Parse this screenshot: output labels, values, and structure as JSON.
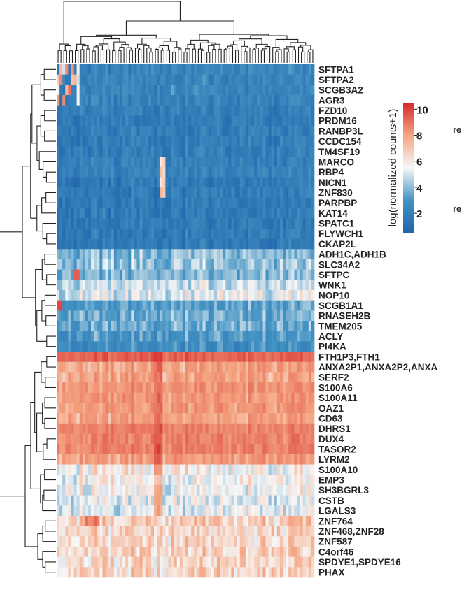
{
  "chart_data": {
    "type": "heatmap",
    "title": "",
    "xlabel": "",
    "ylabel": "",
    "row_labels": [
      "SFTPA1",
      "SFTPA2",
      "SCGB3A2",
      "AGR3",
      "FZD10",
      "PRDM16",
      "RANBP3L",
      "CCDC154",
      "TM4SF19",
      "MARCO",
      "RBP4",
      "NICN1",
      "ZNF830",
      "PARPBP",
      "KAT14",
      "SPATC1",
      "FLYWCH1",
      "CKAP2L",
      "ADH1C,ADH1B",
      "SLC34A2",
      "SFTPC",
      "WNK1",
      "NOP10",
      "SCGB1A1",
      "RNASEH2B",
      "TMEM205",
      "ACLY",
      "PI4KA",
      "FTH1P3,FTH1",
      "ANXA2P1,ANXA2P2,ANXA",
      "SERF2",
      "S100A6",
      "S100A11",
      "OAZ1",
      "CD63",
      "DHRS1",
      "DUX4",
      "TASOR2",
      "LYRM2",
      "S100A10",
      "EMP3",
      "SH3BGRL3",
      "CSTB",
      "LGALS3",
      "ZNF764",
      "ZNF468,ZNF28",
      "ZNF587",
      "C4orf46",
      "SPDYE1,SPDYE16",
      "PHAX"
    ],
    "column_count": 90,
    "row_mean_values": [
      2.2,
      2.2,
      2.3,
      2.1,
      1.9,
      1.8,
      1.8,
      1.8,
      1.9,
      2.0,
      2.0,
      1.7,
      1.7,
      1.7,
      1.7,
      1.7,
      1.7,
      1.7,
      3.7,
      3.9,
      3.6,
      4.4,
      4.6,
      3.2,
      3.4,
      3.4,
      3.0,
      2.6,
      8.6,
      6.6,
      6.6,
      7.0,
      6.9,
      6.9,
      6.7,
      7.6,
      7.6,
      7.6,
      6.8,
      5.0,
      4.9,
      4.8,
      4.6,
      4.6,
      5.7,
      5.6,
      5.5,
      5.6,
      5.5,
      5.6
    ],
    "colorbar": {
      "label": "log(normalized counts+1)",
      "ticks": [
        2,
        4,
        6,
        8,
        10
      ],
      "range": [
        0.5,
        10.5
      ],
      "low_color": "#2f71b1",
      "mid_color": "#f7f7f7",
      "high_color": "#d73027"
    },
    "clipped_labels": [
      "re",
      "re"
    ]
  }
}
